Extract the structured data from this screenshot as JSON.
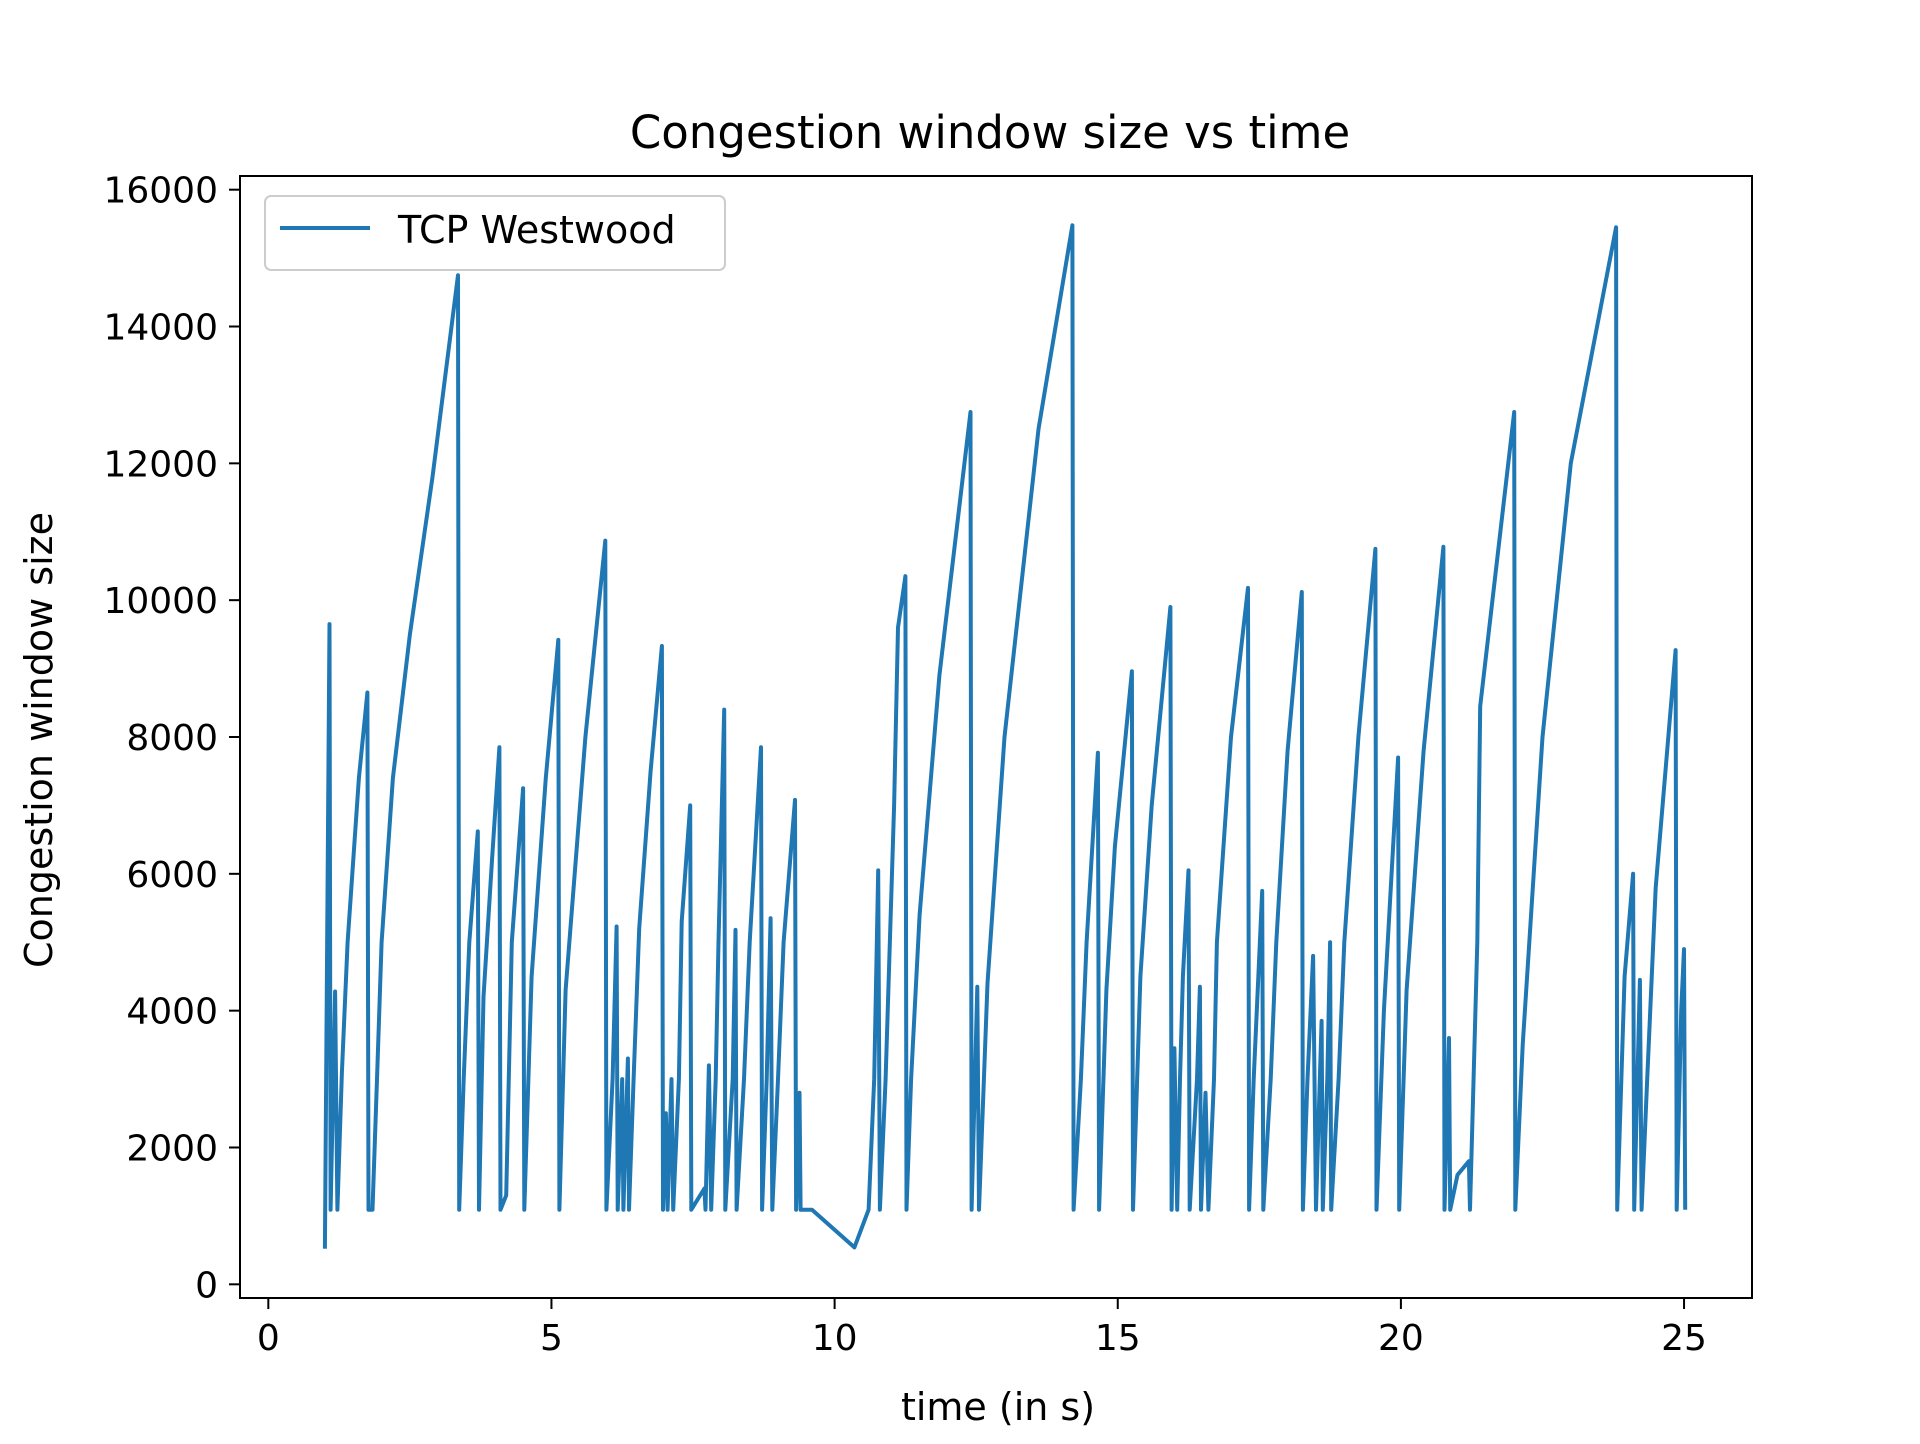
{
  "chart_data": {
    "type": "line",
    "title": "Congestion window size vs time",
    "xlabel": "time (in s)",
    "ylabel": "Congestion window size",
    "xlim": [
      -0.5,
      26.2
    ],
    "ylim": [
      -200,
      16200
    ],
    "xticks": [
      0,
      5,
      10,
      15,
      20,
      25
    ],
    "yticks": [
      0,
      2000,
      4000,
      6000,
      8000,
      10000,
      12000,
      14000,
      16000
    ],
    "grid": false,
    "legend_position": "top-left",
    "series": [
      {
        "name": "TCP Westwood",
        "color": "#1f77b4",
        "points": [
          [
            1.0,
            520
          ],
          [
            1.08,
            9650
          ],
          [
            1.1,
            1090
          ],
          [
            1.18,
            4280
          ],
          [
            1.22,
            1090
          ],
          [
            1.3,
            3100
          ],
          [
            1.4,
            5000
          ],
          [
            1.6,
            7400
          ],
          [
            1.75,
            8650
          ],
          [
            1.77,
            1090
          ],
          [
            1.84,
            1090
          ],
          [
            1.92,
            3000
          ],
          [
            2.0,
            5000
          ],
          [
            2.2,
            7400
          ],
          [
            2.5,
            9500
          ],
          [
            2.9,
            11800
          ],
          [
            3.35,
            14750
          ],
          [
            3.37,
            1090
          ],
          [
            3.45,
            3000
          ],
          [
            3.55,
            5000
          ],
          [
            3.7,
            6620
          ],
          [
            3.72,
            1090
          ],
          [
            3.8,
            4200
          ],
          [
            3.95,
            6200
          ],
          [
            4.08,
            7850
          ],
          [
            4.1,
            1090
          ],
          [
            4.2,
            1300
          ],
          [
            4.3,
            5000
          ],
          [
            4.5,
            7250
          ],
          [
            4.52,
            1090
          ],
          [
            4.65,
            4500
          ],
          [
            4.9,
            7400
          ],
          [
            5.12,
            9420
          ],
          [
            5.14,
            1090
          ],
          [
            5.25,
            4300
          ],
          [
            5.6,
            8000
          ],
          [
            5.95,
            10870
          ],
          [
            5.97,
            1090
          ],
          [
            6.08,
            3000
          ],
          [
            6.15,
            5230
          ],
          [
            6.17,
            1090
          ],
          [
            6.25,
            3000
          ],
          [
            6.27,
            1090
          ],
          [
            6.35,
            3300
          ],
          [
            6.37,
            1090
          ],
          [
            6.45,
            3000
          ],
          [
            6.55,
            5200
          ],
          [
            6.75,
            7500
          ],
          [
            6.95,
            9330
          ],
          [
            6.97,
            1090
          ],
          [
            7.02,
            2500
          ],
          [
            7.05,
            1090
          ],
          [
            7.12,
            3000
          ],
          [
            7.15,
            1090
          ],
          [
            7.25,
            3000
          ],
          [
            7.3,
            5300
          ],
          [
            7.45,
            7000
          ],
          [
            7.47,
            1090
          ],
          [
            7.7,
            1400
          ],
          [
            7.72,
            1090
          ],
          [
            7.78,
            3200
          ],
          [
            7.82,
            1090
          ],
          [
            7.9,
            3000
          ],
          [
            7.95,
            5000
          ],
          [
            8.05,
            8400
          ],
          [
            8.07,
            1090
          ],
          [
            8.2,
            3000
          ],
          [
            8.25,
            5180
          ],
          [
            8.27,
            1090
          ],
          [
            8.4,
            3000
          ],
          [
            8.5,
            5000
          ],
          [
            8.7,
            7850
          ],
          [
            8.72,
            1090
          ],
          [
            8.8,
            3000
          ],
          [
            8.87,
            5350
          ],
          [
            8.9,
            1090
          ],
          [
            9.0,
            3000
          ],
          [
            9.1,
            5000
          ],
          [
            9.3,
            7080
          ],
          [
            9.32,
            1090
          ],
          [
            9.38,
            2800
          ],
          [
            9.4,
            1090
          ],
          [
            9.6,
            1090
          ],
          [
            10.35,
            540
          ],
          [
            10.6,
            1090
          ],
          [
            10.7,
            3000
          ],
          [
            10.77,
            6050
          ],
          [
            10.8,
            1090
          ],
          [
            10.9,
            3000
          ],
          [
            11.05,
            7000
          ],
          [
            11.12,
            9600
          ],
          [
            11.25,
            10350
          ],
          [
            11.27,
            1090
          ],
          [
            11.35,
            3000
          ],
          [
            11.5,
            5400
          ],
          [
            11.85,
            8900
          ],
          [
            12.4,
            12750
          ],
          [
            12.42,
            1090
          ],
          [
            12.52,
            4350
          ],
          [
            12.55,
            1090
          ],
          [
            12.7,
            4400
          ],
          [
            13.0,
            8000
          ],
          [
            13.6,
            12500
          ],
          [
            14.2,
            15480
          ],
          [
            14.22,
            1090
          ],
          [
            14.35,
            3000
          ],
          [
            14.45,
            5000
          ],
          [
            14.65,
            7770
          ],
          [
            14.67,
            1090
          ],
          [
            14.8,
            4300
          ],
          [
            14.95,
            6400
          ],
          [
            15.25,
            8960
          ],
          [
            15.27,
            1090
          ],
          [
            15.4,
            4500
          ],
          [
            15.6,
            7000
          ],
          [
            15.93,
            9900
          ],
          [
            15.95,
            1090
          ],
          [
            16.0,
            3450
          ],
          [
            16.05,
            1090
          ],
          [
            16.1,
            3000
          ],
          [
            16.15,
            4500
          ],
          [
            16.25,
            6050
          ],
          [
            16.27,
            1090
          ],
          [
            16.4,
            3000
          ],
          [
            16.45,
            4350
          ],
          [
            16.47,
            1090
          ],
          [
            16.55,
            2800
          ],
          [
            16.6,
            1090
          ],
          [
            16.7,
            3000
          ],
          [
            16.75,
            5000
          ],
          [
            17.0,
            8000
          ],
          [
            17.3,
            10180
          ],
          [
            17.32,
            1090
          ],
          [
            17.4,
            3000
          ],
          [
            17.55,
            5750
          ],
          [
            17.57,
            1090
          ],
          [
            17.7,
            3000
          ],
          [
            17.8,
            5000
          ],
          [
            18.0,
            7800
          ],
          [
            18.25,
            10120
          ],
          [
            18.27,
            1090
          ],
          [
            18.35,
            3000
          ],
          [
            18.45,
            4800
          ],
          [
            18.5,
            1090
          ],
          [
            18.55,
            2500
          ],
          [
            18.6,
            3850
          ],
          [
            18.62,
            1090
          ],
          [
            18.7,
            3000
          ],
          [
            18.75,
            5000
          ],
          [
            18.77,
            1090
          ],
          [
            18.9,
            3000
          ],
          [
            19.0,
            5000
          ],
          [
            19.25,
            8000
          ],
          [
            19.55,
            10750
          ],
          [
            19.57,
            1090
          ],
          [
            19.7,
            4000
          ],
          [
            19.95,
            7700
          ],
          [
            19.97,
            1090
          ],
          [
            20.1,
            4300
          ],
          [
            20.4,
            7800
          ],
          [
            20.75,
            10780
          ],
          [
            20.77,
            1090
          ],
          [
            20.85,
            3600
          ],
          [
            20.87,
            1090
          ],
          [
            21.0,
            1600
          ],
          [
            21.2,
            1800
          ],
          [
            21.22,
            1090
          ],
          [
            21.35,
            5000
          ],
          [
            21.4,
            8450
          ],
          [
            22.0,
            12750
          ],
          [
            22.02,
            1090
          ],
          [
            22.15,
            3500
          ],
          [
            22.5,
            8000
          ],
          [
            23.0,
            12000
          ],
          [
            23.8,
            15450
          ],
          [
            23.82,
            1090
          ],
          [
            23.95,
            4500
          ],
          [
            24.1,
            6000
          ],
          [
            24.12,
            1090
          ],
          [
            24.22,
            4450
          ],
          [
            24.25,
            1090
          ],
          [
            24.35,
            3000
          ],
          [
            24.5,
            5800
          ],
          [
            24.85,
            9270
          ],
          [
            24.87,
            1090
          ],
          [
            24.95,
            4000
          ],
          [
            25.0,
            4900
          ],
          [
            25.02,
            1090
          ]
        ]
      }
    ]
  }
}
